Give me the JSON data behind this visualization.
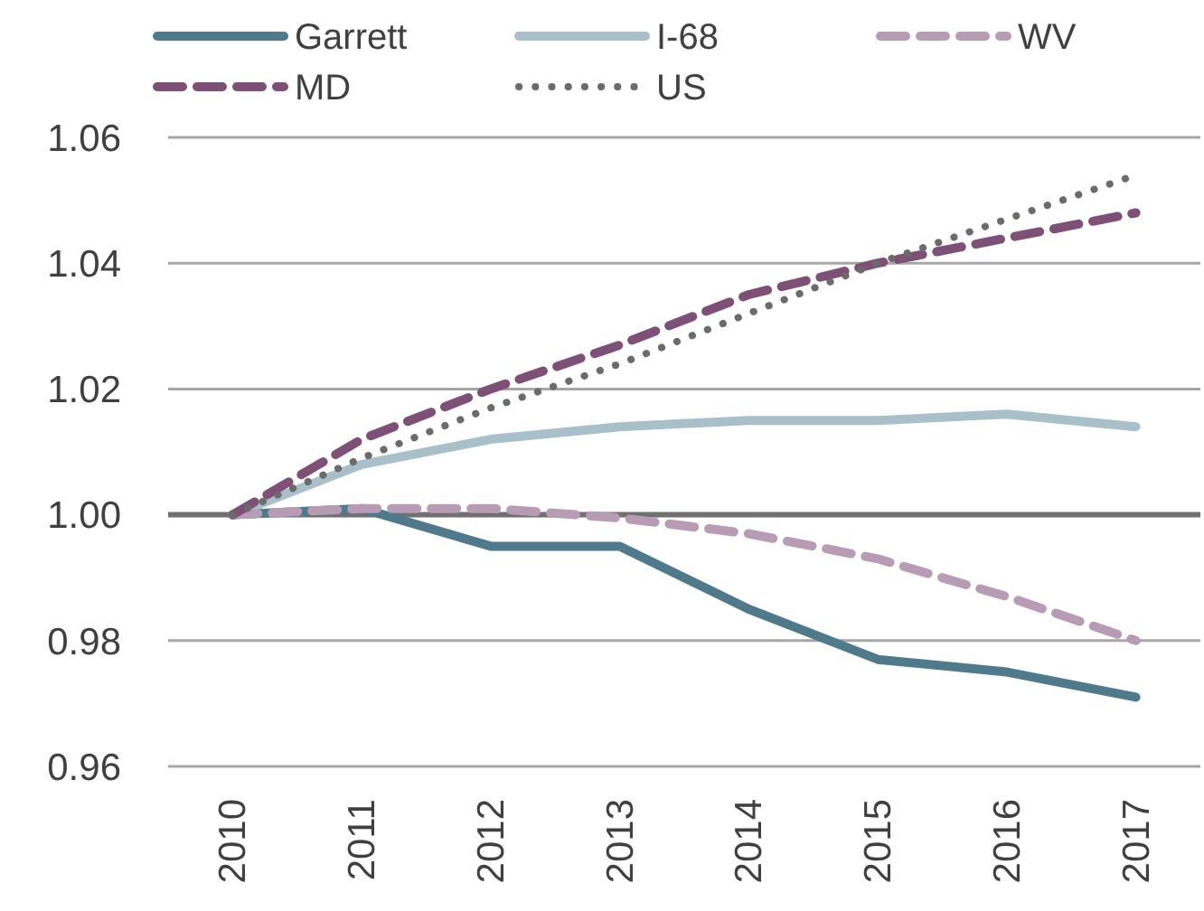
{
  "chart_data": {
    "type": "line",
    "categories": [
      "2010",
      "2011",
      "2012",
      "2013",
      "2014",
      "2015",
      "2016",
      "2017"
    ],
    "series": [
      {
        "name": "Garrett",
        "color": "#4f7a8c",
        "line_style": "solid",
        "values": [
          1.0,
          1.001,
          0.995,
          0.995,
          0.985,
          0.977,
          0.975,
          0.971
        ]
      },
      {
        "name": "I-68",
        "color": "#a9bfc9",
        "line_style": "solid",
        "values": [
          1.0,
          1.008,
          1.012,
          1.014,
          1.015,
          1.015,
          1.016,
          1.014
        ]
      },
      {
        "name": "WV",
        "color": "#b89bb5",
        "line_style": "dashed",
        "values": [
          1.0,
          1.001,
          1.001,
          0.9995,
          0.997,
          0.993,
          0.987,
          0.98
        ]
      },
      {
        "name": "MD",
        "color": "#7e4f77",
        "line_style": "dashed",
        "values": [
          1.0,
          1.012,
          1.02,
          1.027,
          1.035,
          1.04,
          1.044,
          1.048
        ]
      },
      {
        "name": "US",
        "color": "#6b6b6b",
        "line_style": "dotted",
        "values": [
          1.0,
          1.009,
          1.017,
          1.024,
          1.032,
          1.04,
          1.047,
          1.054
        ]
      }
    ],
    "ylim": [
      0.96,
      1.06
    ],
    "yticks": [
      {
        "value": 0.96,
        "label": "0.96"
      },
      {
        "value": 0.98,
        "label": "0.98"
      },
      {
        "value": 1.0,
        "label": "1.00"
      },
      {
        "value": 1.02,
        "label": "1.02"
      },
      {
        "value": 1.04,
        "label": "1.04"
      },
      {
        "value": 1.06,
        "label": "1.06"
      }
    ],
    "grid": "y",
    "legend": "top",
    "ref_lines": [
      {
        "axis": "y",
        "value": 1.0,
        "color": "#707070"
      }
    ]
  }
}
